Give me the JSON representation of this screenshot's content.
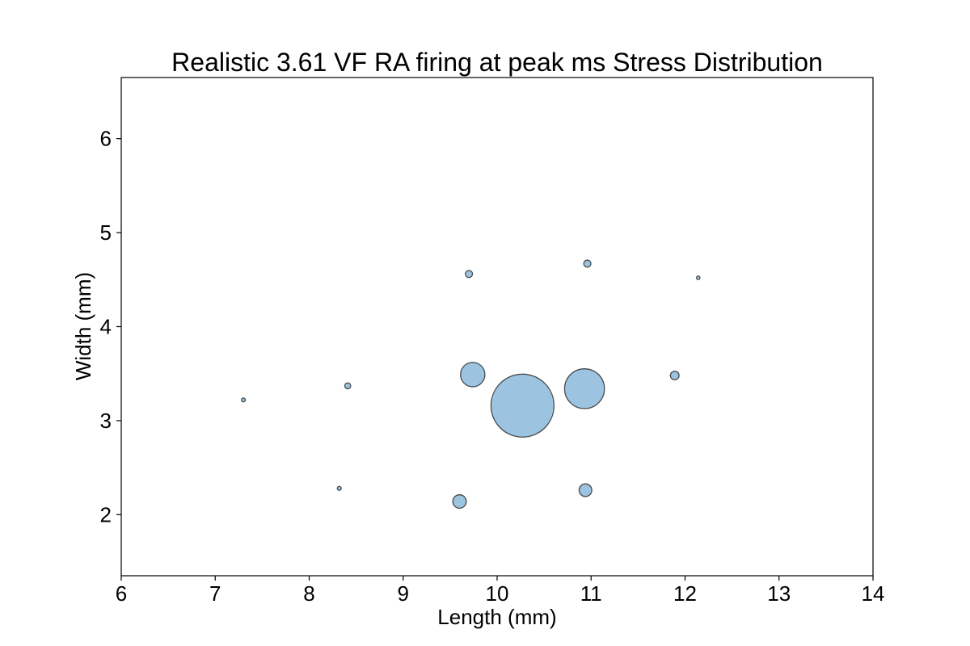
{
  "chart_data": {
    "type": "scatter",
    "title": "Realistic 3.61 VF RA firing at peak ms Stress Distribution",
    "xlabel": "Length (mm)",
    "ylabel": "Width (mm)",
    "xlim": [
      6,
      14
    ],
    "ylim": [
      1.35,
      6.65
    ],
    "xticks": [
      "6",
      "7",
      "8",
      "9",
      "10",
      "11",
      "12",
      "13",
      "14"
    ],
    "yticks": [
      "2",
      "3",
      "4",
      "5",
      "6"
    ],
    "grid": false,
    "legend": "none",
    "colors": {
      "fill": "#3a87c0",
      "edge": "#1a1a1a"
    },
    "size_note": "relative bubble size (area)",
    "points": [
      {
        "x": 10.27,
        "y": 3.16,
        "size": 100
      },
      {
        "x": 10.93,
        "y": 3.34,
        "size": 40
      },
      {
        "x": 9.74,
        "y": 3.49,
        "size": 15
      },
      {
        "x": 10.94,
        "y": 2.26,
        "size": 4.1
      },
      {
        "x": 9.6,
        "y": 2.14,
        "size": 4.6
      },
      {
        "x": 11.89,
        "y": 3.48,
        "size": 1.9
      },
      {
        "x": 10.96,
        "y": 4.67,
        "size": 1.3
      },
      {
        "x": 9.7,
        "y": 4.56,
        "size": 1.3
      },
      {
        "x": 8.41,
        "y": 3.37,
        "size": 0.9
      },
      {
        "x": 8.32,
        "y": 2.28,
        "size": 0.4
      },
      {
        "x": 7.3,
        "y": 3.22,
        "size": 0.4
      },
      {
        "x": 12.14,
        "y": 4.52,
        "size": 0.3
      }
    ]
  }
}
